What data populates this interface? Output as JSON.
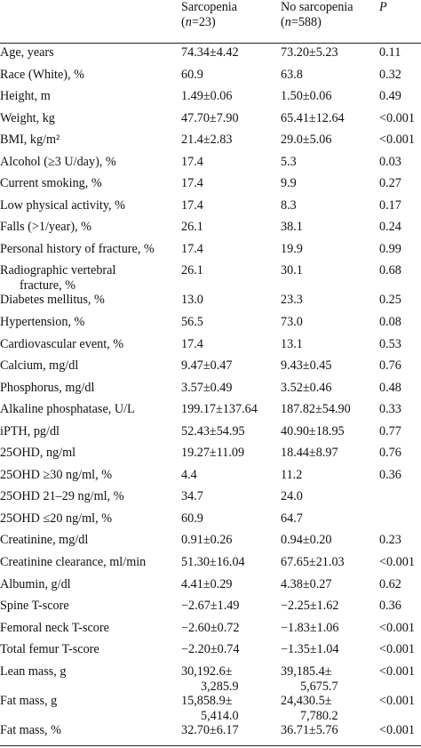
{
  "header": {
    "col1_line1": "Sarcopenia",
    "col1_n": "n",
    "col1_rest": "=23)",
    "col2_line1": "No sarcopenia",
    "col2_n": "n",
    "col2_rest": "=588)",
    "col3": "P"
  },
  "rows": [
    {
      "label": "Age, years",
      "a": "74.34±4.42",
      "b": "73.20±5.23",
      "p": "0.11"
    },
    {
      "label": "Race (White), %",
      "a": "60.9",
      "b": "63.8",
      "p": "0.32"
    },
    {
      "label": "Height, m",
      "a": "1.49±0.06",
      "b": "1.50±0.06",
      "p": "0.49"
    },
    {
      "label": "Weight, kg",
      "a": "47.70±7.90",
      "b": "65.41±12.64",
      "p": "<0.001"
    },
    {
      "label": "BMI, kg/m²",
      "a": "21.4±2.83",
      "b": "29.0±5.06",
      "p": "<0.001"
    },
    {
      "label": "Alcohol (≥3 U/day), %",
      "a": "17.4",
      "b": "5.3",
      "p": "0.03"
    },
    {
      "label": "Current smoking, %",
      "a": "17.4",
      "b": "9.9",
      "p": "0.27"
    },
    {
      "label": "Low physical activity, %",
      "a": "17.4",
      "b": "8.3",
      "p": "0.17"
    },
    {
      "label": "Falls (>1/year), %",
      "a": "26.1",
      "b": "38.1",
      "p": "0.24"
    },
    {
      "label": "Personal history of fracture, %",
      "a": "17.4",
      "b": "19.9",
      "p": "0.99"
    },
    {
      "label": "Radiographic vertebral",
      "label2": "fracture, %",
      "a": "26.1",
      "b": "30.1",
      "p": "0.68"
    },
    {
      "label": "Diabetes mellitus, %",
      "a": "13.0",
      "b": "23.3",
      "p": "0.25"
    },
    {
      "label": "Hypertension, %",
      "a": "56.5",
      "b": "73.0",
      "p": "0.08"
    },
    {
      "label": "Cardiovascular event, %",
      "a": "17.4",
      "b": "13.1",
      "p": "0.53"
    },
    {
      "label": "Calcium, mg/dl",
      "a": "9.47±0.47",
      "b": "9.43±0.45",
      "p": "0.76"
    },
    {
      "label": "Phosphorus, mg/dl",
      "a": "3.57±0.49",
      "b": "3.52±0.46",
      "p": "0.48"
    },
    {
      "label": "Alkaline phosphatase, U/L",
      "a": "199.17±137.64",
      "b": "187.82±54.90",
      "p": "0.33"
    },
    {
      "label": "iPTH, pg/dl",
      "a": "52.43±54.95",
      "b": "40.90±18.95",
      "p": "0.77"
    },
    {
      "label": "25OHD, ng/ml",
      "a": "19.27±11.09",
      "b": "18.44±8.97",
      "p": "0.76"
    },
    {
      "label": "25OHD ≥30 ng/ml, %",
      "a": "4.4",
      "b": "11.2",
      "p": "0.36"
    },
    {
      "label": "25OHD 21–29 ng/ml, %",
      "a": "34.7",
      "b": "24.0",
      "p": ""
    },
    {
      "label": "25OHD ≤20 ng/ml, %",
      "a": "60.9",
      "b": "64.7",
      "p": ""
    },
    {
      "label": "Creatinine, mg/dl",
      "a": "0.91±0.26",
      "b": "0.94±0.20",
      "p": "0.23"
    },
    {
      "label": "Creatinine clearance, ml/min",
      "a": "51.30±16.04",
      "b": "67.65±21.03",
      "p": "<0.001"
    },
    {
      "label": "Albumin, g/dl",
      "a": "4.41±0.29",
      "b": "4.38±0.27",
      "p": "0.62"
    },
    {
      "label": "Spine T-score",
      "a": "−2.67±1.49",
      "b": "−2.25±1.62",
      "p": "0.36"
    },
    {
      "label": "Femoral neck T-score",
      "a": "−2.60±0.72",
      "b": "−1.83±1.06",
      "p": "<0.001"
    },
    {
      "label": "Total femur T-score",
      "a": "−2.20±0.74",
      "b": "−1.35±1.04",
      "p": "<0.001"
    },
    {
      "label": "Lean mass, g",
      "a": "30,192.6±",
      "a2": "3,285.9",
      "b": "39,185.4±",
      "b2": "5,675.7",
      "p": "<0.001"
    },
    {
      "label": "Fat mass, g",
      "a": "15,858.9±",
      "a2": "5,414.0",
      "b": "24,430.5±",
      "b2": "7,780.2",
      "p": "<0.001"
    },
    {
      "label": "Fat mass, %",
      "a": "32.70±6.17",
      "b": "36.71±5.76",
      "p": "<0.001"
    }
  ]
}
